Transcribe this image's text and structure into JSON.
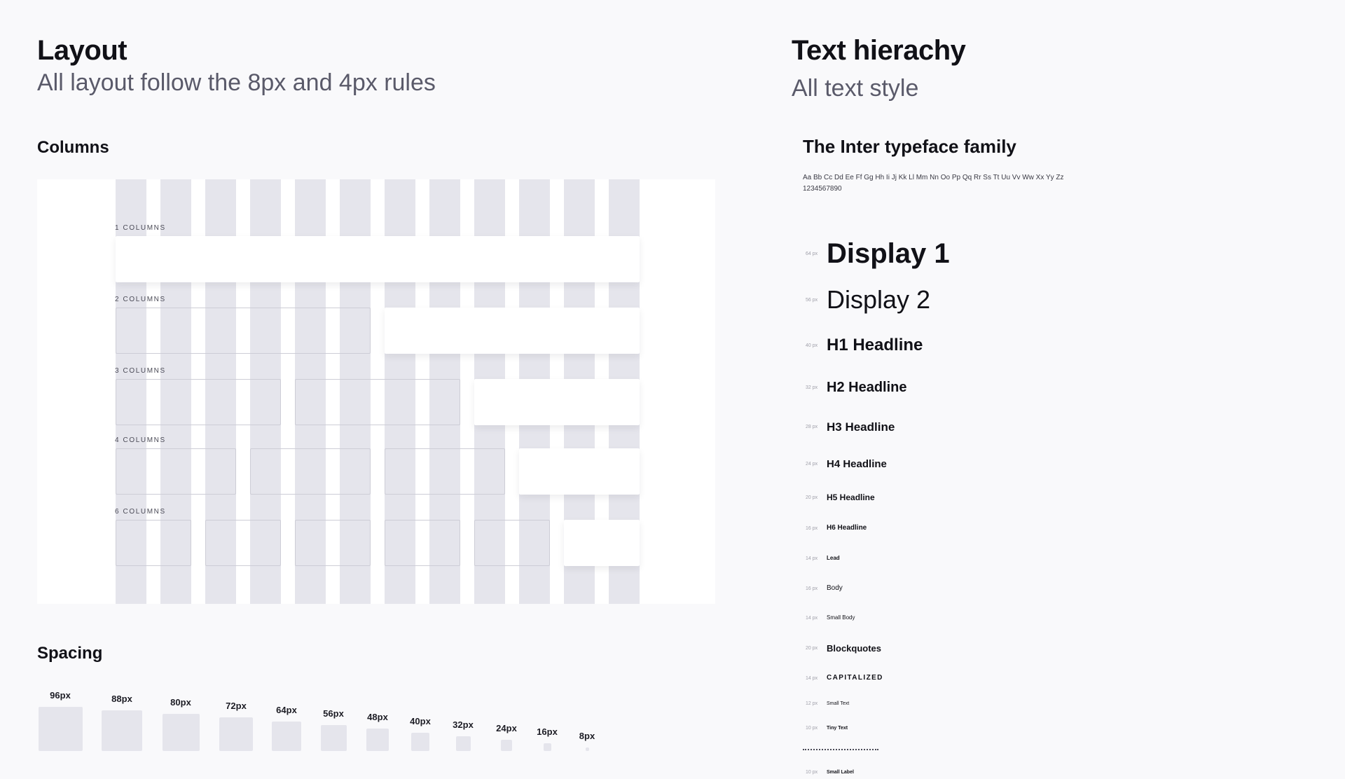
{
  "layout": {
    "title": "Layout",
    "subtitle": "All layout follow the 8px and 4px rules",
    "columns_heading": "Columns",
    "column_rows": [
      {
        "label": "1 COLUMNS",
        "placeholders": 0
      },
      {
        "label": "2 COLUMNS",
        "placeholders": 1
      },
      {
        "label": "3 COLUMNS",
        "placeholders": 2
      },
      {
        "label": "4 COLUMNS",
        "placeholders": 3
      },
      {
        "label": "6 COLUMNS",
        "placeholders": 5
      }
    ],
    "spacing_heading": "Spacing",
    "spacing": [
      {
        "label": "96px",
        "value": 96
      },
      {
        "label": "88px",
        "value": 88
      },
      {
        "label": "80px",
        "value": 80
      },
      {
        "label": "72px",
        "value": 72
      },
      {
        "label": "64px",
        "value": 64
      },
      {
        "label": "56px",
        "value": 56
      },
      {
        "label": "48px",
        "value": 48
      },
      {
        "label": "40px",
        "value": 40
      },
      {
        "label": "32px",
        "value": 32
      },
      {
        "label": "24px",
        "value": 24
      },
      {
        "label": "16px",
        "value": 16
      },
      {
        "label": "8px",
        "value": 8
      }
    ],
    "colors": {
      "grid_column": "#e5e5ec",
      "panel": "#ffffff",
      "background": "#f9f9fb"
    }
  },
  "text": {
    "title": "Text hierachy",
    "subtitle": "All text style",
    "typeface_title": "The Inter typeface family",
    "alphabet": "Aa Bb Cc Dd Ee Ff Gg Hh Ii Jj Kk Ll Mm Nn Oo Pp Qq Rr Ss Tt Uu Vv Ww Xx Yy Zz",
    "digits": "1234567890",
    "styles": [
      {
        "size": "64 px",
        "name": "Display 1"
      },
      {
        "size": "56 px",
        "name": "Display 2"
      },
      {
        "size": "40 px",
        "name": "H1 Headline"
      },
      {
        "size": "32 px",
        "name": "H2 Headline"
      },
      {
        "size": "28 px",
        "name": "H3 Headline"
      },
      {
        "size": "24 px",
        "name": "H4 Headline"
      },
      {
        "size": "20 px",
        "name": "H5 Headline"
      },
      {
        "size": "16 px",
        "name": "H6 Headline"
      },
      {
        "size": "14 px",
        "name": "Lead"
      },
      {
        "size": "16 px",
        "name": "Body"
      },
      {
        "size": "14 px",
        "name": "Small Body"
      },
      {
        "size": "20 px",
        "name": "Blockquotes"
      },
      {
        "size": "14 px",
        "name": "CAPITALIZED"
      },
      {
        "size": "12 px",
        "name": "Small Text"
      },
      {
        "size": "10 px",
        "name": "Tiny Text"
      },
      {
        "size": "10 px",
        "name": "Small Label"
      }
    ]
  }
}
